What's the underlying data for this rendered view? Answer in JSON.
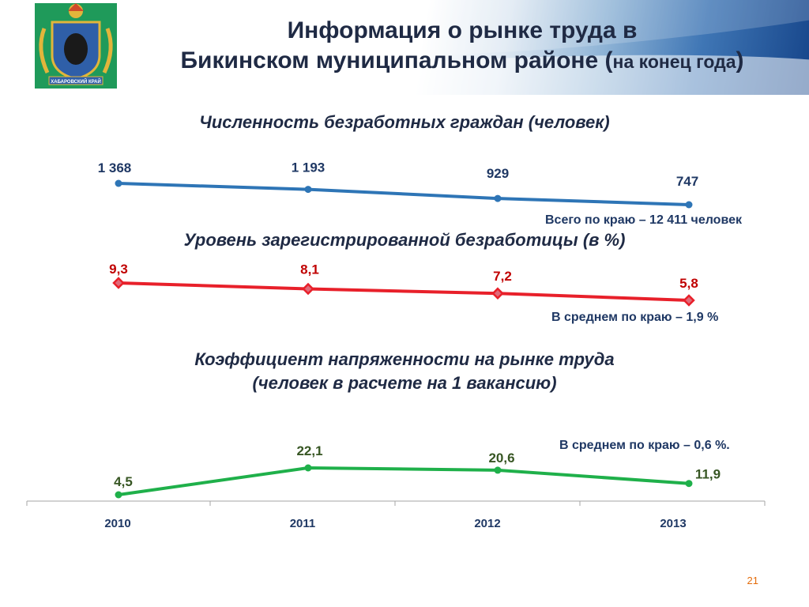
{
  "header": {
    "title_line1": "Информация о рынке труда в",
    "title_line2_main": "Бикинском муниципальном районе (",
    "title_line2_small": "на конец года",
    "title_line2_close": ")",
    "emblem_text": "ХАБАРОВСКИЙ КРАЙ"
  },
  "page_number": "21",
  "chart_data": [
    {
      "type": "line",
      "title": "Численность безработных граждан (человек)",
      "x": [
        "2010",
        "2011",
        "2012",
        "2013"
      ],
      "series": [
        {
          "values": [
            1368,
            1193,
            929,
            747
          ],
          "labels": [
            "1 368",
            "1 193",
            "929",
            "747"
          ],
          "color": "#2e75b6"
        }
      ],
      "note": "Всего по краю – 12 411 человек"
    },
    {
      "type": "line",
      "title": "Уровень зарегистрированной безработицы (в %)",
      "x": [
        "2010",
        "2011",
        "2012",
        "2013"
      ],
      "series": [
        {
          "values": [
            9.3,
            8.1,
            7.2,
            5.8
          ],
          "labels": [
            "9,3",
            "8,1",
            "7,2",
            "5,8"
          ],
          "color": "#e8202a"
        }
      ],
      "note": "В среднем по краю – 1,9 %"
    },
    {
      "type": "line",
      "title_line1": "Коэффициент напряженности на рынке труда",
      "title_line2": "(человек в расчете на 1 вакансию)",
      "x": [
        "2010",
        "2011",
        "2012",
        "2013"
      ],
      "series": [
        {
          "values": [
            4.5,
            22.1,
            20.6,
            11.9
          ],
          "labels": [
            "4,5",
            "22,1",
            "20,6",
            "11,9"
          ],
          "color": "#1fb04a"
        }
      ],
      "note": "В среднем по краю – 0,6 %."
    }
  ]
}
